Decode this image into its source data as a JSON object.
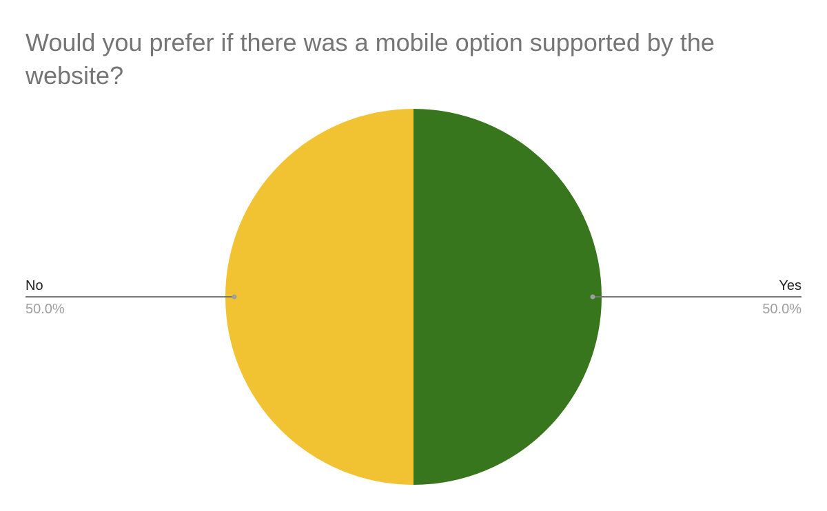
{
  "chart_data": {
    "type": "pie",
    "title": "Would you prefer if there was a mobile option supported by the website?",
    "slices": [
      {
        "label": "Yes",
        "value": 50.0,
        "percent_label": "50.0%",
        "color": "#38761d"
      },
      {
        "label": "No",
        "value": 50.0,
        "percent_label": "50.0%",
        "color": "#f1c232"
      }
    ],
    "legend": "leader-lines"
  }
}
